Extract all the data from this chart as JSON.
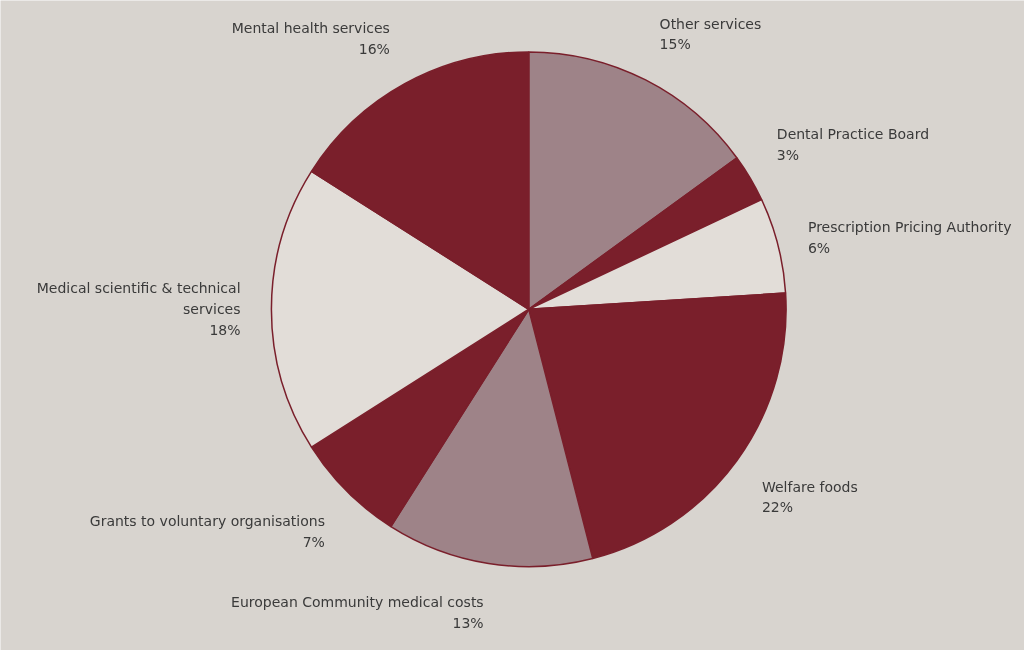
{
  "chart_data": {
    "type": "pie",
    "categories": [
      "Other services",
      "Dental Practice Board",
      "Prescription Pricing Authority",
      "Welfare foods",
      "European Community medical costs",
      "Grants to voluntary organisations",
      "Medical scientific & technical services",
      "Mental health services"
    ],
    "values": [
      15,
      3,
      6,
      22,
      13,
      7,
      18,
      16
    ],
    "value_labels": [
      "15%",
      "3%",
      "6%",
      "22%",
      "13%",
      "7%",
      "18%",
      "16%"
    ],
    "colors": [
      "#9e8388",
      "#7a1f2b",
      "#e2ddd8",
      "#7a1f2b",
      "#9e8388",
      "#7a1f2b",
      "#e2ddd8",
      "#7a1f2b"
    ]
  }
}
